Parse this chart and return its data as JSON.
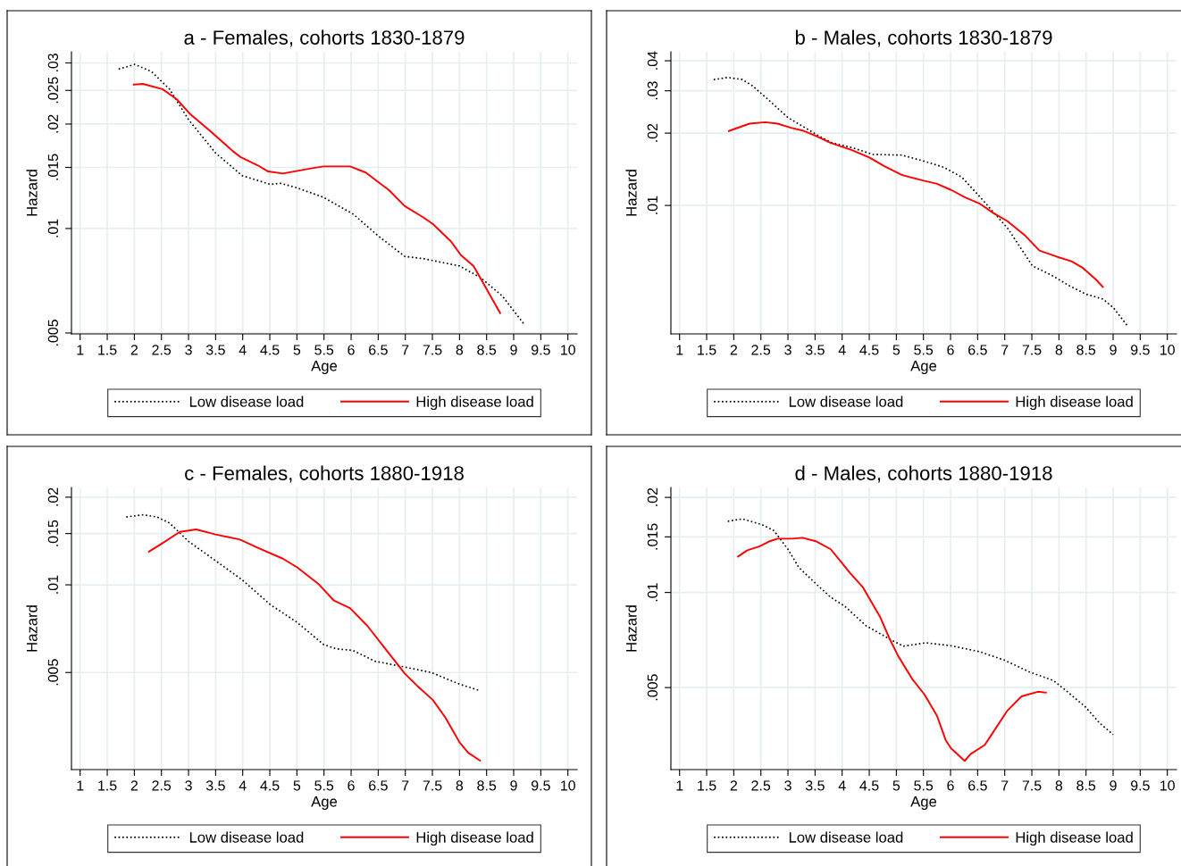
{
  "chart_data": [
    {
      "type": "line",
      "title": "a - Females, cohorts 1830-1879",
      "xlabel": "Age",
      "ylabel": "Hazard",
      "log": "y",
      "grid": true,
      "legend": "bottom",
      "xlim": [
        0.84,
        10.17
      ],
      "xticks": [
        1,
        1.5,
        2,
        2.5,
        3,
        3.5,
        4,
        4.5,
        5,
        5.5,
        6,
        6.5,
        7,
        7.5,
        8,
        8.5,
        9,
        9.5,
        10
      ],
      "ylim": [
        0.00497,
        0.0323
      ],
      "yticks": [
        {
          "value": 0.005,
          "label": ".005"
        },
        {
          "value": 0.01,
          "label": ".01"
        },
        {
          "value": 0.015,
          "label": ".015"
        },
        {
          "value": 0.02,
          "label": ".02"
        },
        {
          "value": 0.025,
          "label": ".025"
        },
        {
          "value": 0.03,
          "label": ".03"
        }
      ],
      "series": [
        {
          "name": "Low disease load",
          "color": "#000000",
          "line_style": "dotted",
          "x": [
            1.71,
            2.01,
            2.32,
            2.65,
            3.0,
            3.5,
            3.99,
            4.51,
            4.7,
            5.0,
            5.49,
            6.04,
            6.5,
            6.99,
            7.35,
            8.0,
            8.39,
            8.79,
            9.18
          ],
          "values": [
            0.0288,
            0.0297,
            0.0283,
            0.0252,
            0.0206,
            0.0165,
            0.0142,
            0.0134,
            0.0135,
            0.0131,
            0.0123,
            0.011,
            0.00952,
            0.00831,
            0.00818,
            0.0078,
            0.00722,
            0.00639,
            0.00533
          ]
        },
        {
          "name": "High disease load",
          "color": "#ff0000",
          "line_style": "solid",
          "x": [
            1.99,
            2.16,
            2.52,
            2.78,
            3.04,
            3.4,
            3.82,
            3.95,
            4.28,
            4.47,
            4.74,
            5.26,
            5.49,
            5.98,
            6.27,
            6.53,
            6.7,
            6.99,
            7.32,
            7.51,
            7.84,
            8.03,
            8.26,
            8.49,
            8.75
          ],
          "values": [
            0.026,
            0.0261,
            0.0252,
            0.0236,
            0.0213,
            0.0191,
            0.0167,
            0.0161,
            0.0152,
            0.0146,
            0.0144,
            0.0149,
            0.0151,
            0.0151,
            0.0145,
            0.0135,
            0.0129,
            0.0116,
            0.0108,
            0.0103,
            0.00919,
            0.00837,
            0.0078,
            0.00673,
            0.00571
          ]
        }
      ]
    },
    {
      "type": "line",
      "title": "b - Males, cohorts 1830-1879",
      "xlabel": "Age",
      "ylabel": "Hazard",
      "log": "y",
      "grid": true,
      "legend": "bottom",
      "xlim": [
        0.84,
        10.17
      ],
      "xticks": [
        1,
        1.5,
        2,
        2.5,
        3,
        3.5,
        4,
        4.5,
        5,
        5.5,
        6,
        6.5,
        7,
        7.5,
        8,
        8.5,
        9,
        9.5,
        10
      ],
      "ylim": [
        0.00292,
        0.0436
      ],
      "yticks": [
        {
          "value": 0.01,
          "label": ".01"
        },
        {
          "value": 0.02,
          "label": ".02"
        },
        {
          "value": 0.03,
          "label": ".03"
        },
        {
          "value": 0.04,
          "label": ".04"
        }
      ],
      "series": [
        {
          "name": "Low disease load",
          "color": "#000000",
          "line_style": "dotted",
          "x": [
            1.63,
            1.89,
            2.16,
            2.35,
            2.61,
            3.0,
            3.53,
            3.79,
            4.18,
            4.57,
            5.1,
            5.55,
            5.88,
            6.21,
            6.6,
            7.06,
            7.51,
            7.9,
            8.17,
            8.49,
            8.82,
            9.01,
            9.26
          ],
          "values": [
            0.0334,
            0.0341,
            0.0334,
            0.0314,
            0.0279,
            0.0232,
            0.0197,
            0.0183,
            0.0174,
            0.0163,
            0.0162,
            0.0152,
            0.0144,
            0.0131,
            0.0105,
            0.008,
            0.00561,
            0.00507,
            0.00466,
            0.00428,
            0.00407,
            0.00374,
            0.00316
          ]
        },
        {
          "name": "High disease load",
          "color": "#ff0000",
          "line_style": "solid",
          "x": [
            1.91,
            2.29,
            2.58,
            2.81,
            3.07,
            3.27,
            3.53,
            3.79,
            4.18,
            4.51,
            4.77,
            5.1,
            5.49,
            5.75,
            6.01,
            6.27,
            6.53,
            6.79,
            7.05,
            7.38,
            7.64,
            7.97,
            8.23,
            8.43,
            8.69,
            8.81
          ],
          "values": [
            0.0204,
            0.0219,
            0.0222,
            0.0219,
            0.021,
            0.0205,
            0.0194,
            0.0182,
            0.017,
            0.0158,
            0.0146,
            0.0134,
            0.0127,
            0.0123,
            0.0116,
            0.0108,
            0.0102,
            0.0093,
            0.0086,
            0.00748,
            0.00649,
            0.00611,
            0.00586,
            0.00552,
            0.0049,
            0.00458
          ]
        }
      ]
    },
    {
      "type": "line",
      "title": "c - Females, cohorts 1880-1918",
      "xlabel": "Age",
      "ylabel": "Hazard",
      "log": "y",
      "grid": true,
      "legend": "bottom",
      "xlim": [
        0.84,
        10.17
      ],
      "xticks": [
        1,
        1.5,
        2,
        2.5,
        3,
        3.5,
        4,
        4.5,
        5,
        5.5,
        6,
        6.5,
        7,
        7.5,
        8,
        8.5,
        9,
        9.5,
        10
      ],
      "ylim": [
        0.00232,
        0.0216
      ],
      "yticks": [
        {
          "value": 0.005,
          "label": ".005"
        },
        {
          "value": 0.01,
          "label": ".01"
        },
        {
          "value": 0.015,
          "label": ".015"
        },
        {
          "value": 0.02,
          "label": ".02"
        }
      ],
      "series": [
        {
          "name": "Low disease load",
          "color": "#000000",
          "line_style": "dotted",
          "x": [
            1.85,
            2.16,
            2.42,
            2.65,
            3.0,
            3.5,
            3.99,
            4.51,
            5.0,
            5.49,
            5.72,
            6.04,
            6.43,
            6.99,
            7.48,
            8.0,
            8.36
          ],
          "values": [
            0.0171,
            0.0174,
            0.0171,
            0.0163,
            0.0141,
            0.0121,
            0.0104,
            0.00855,
            0.00744,
            0.00624,
            0.00603,
            0.00595,
            0.00547,
            0.00522,
            0.005,
            0.00456,
            0.00434
          ]
        },
        {
          "name": "High disease load",
          "color": "#ff0000",
          "line_style": "solid",
          "x": [
            2.27,
            2.52,
            2.84,
            3.14,
            3.5,
            3.95,
            4.28,
            4.74,
            5.0,
            5.39,
            5.68,
            5.98,
            6.3,
            6.63,
            6.99,
            7.22,
            7.51,
            7.74,
            8.0,
            8.16,
            8.38
          ],
          "values": [
            0.013,
            0.0139,
            0.0152,
            0.0155,
            0.0149,
            0.0143,
            0.0134,
            0.0123,
            0.0115,
            0.0101,
            0.00884,
            0.00832,
            0.00723,
            0.00603,
            0.00496,
            0.0045,
            0.00402,
            0.0035,
            0.00288,
            0.00265,
            0.00249
          ]
        }
      ]
    },
    {
      "type": "line",
      "title": "d - Males, cohorts 1880-1918",
      "xlabel": "Age",
      "ylabel": "Hazard",
      "log": "y",
      "grid": true,
      "legend": "bottom",
      "xlim": [
        0.84,
        10.17
      ],
      "xticks": [
        1,
        1.5,
        2,
        2.5,
        3,
        3.5,
        4,
        4.5,
        5,
        5.5,
        6,
        6.5,
        7,
        7.5,
        8,
        8.5,
        9,
        9.5,
        10
      ],
      "ylim": [
        0.00275,
        0.0215
      ],
      "yticks": [
        {
          "value": 0.005,
          "label": ".005"
        },
        {
          "value": 0.01,
          "label": ".01"
        },
        {
          "value": 0.015,
          "label": ".015"
        },
        {
          "value": 0.02,
          "label": ".02"
        }
      ],
      "series": [
        {
          "name": "Low disease load",
          "color": "#000000",
          "line_style": "dotted",
          "x": [
            1.89,
            2.16,
            2.52,
            2.74,
            3.0,
            3.2,
            3.53,
            3.79,
            4.05,
            4.44,
            4.9,
            5.13,
            5.55,
            6.01,
            6.53,
            6.99,
            7.45,
            7.9,
            8.1,
            8.49,
            8.75,
            9.0
          ],
          "values": [
            0.0168,
            0.0171,
            0.0164,
            0.0157,
            0.0137,
            0.012,
            0.0106,
            0.00965,
            0.00904,
            0.00785,
            0.00708,
            0.00676,
            0.00693,
            0.00678,
            0.0065,
            0.00611,
            0.00561,
            0.00526,
            0.00494,
            0.00434,
            0.00386,
            0.00355
          ]
        },
        {
          "name": "High disease load",
          "color": "#ff0000",
          "line_style": "solid",
          "x": [
            2.08,
            2.25,
            2.48,
            2.65,
            2.81,
            3.07,
            3.27,
            3.53,
            3.79,
            3.98,
            4.15,
            4.38,
            4.7,
            4.87,
            5.03,
            5.29,
            5.52,
            5.75,
            5.91,
            6.01,
            6.26,
            6.37,
            6.63,
            6.73,
            7.05,
            7.31,
            7.61,
            7.76
          ],
          "values": [
            0.013,
            0.0136,
            0.014,
            0.0145,
            0.0148,
            0.0148,
            0.0149,
            0.0145,
            0.0137,
            0.0125,
            0.0115,
            0.0104,
            0.00837,
            0.00717,
            0.00631,
            0.00533,
            0.00475,
            0.00407,
            0.00341,
            0.00321,
            0.00293,
            0.00308,
            0.00329,
            0.00349,
            0.00423,
            0.00469,
            0.00485,
            0.00482
          ]
        }
      ]
    }
  ]
}
